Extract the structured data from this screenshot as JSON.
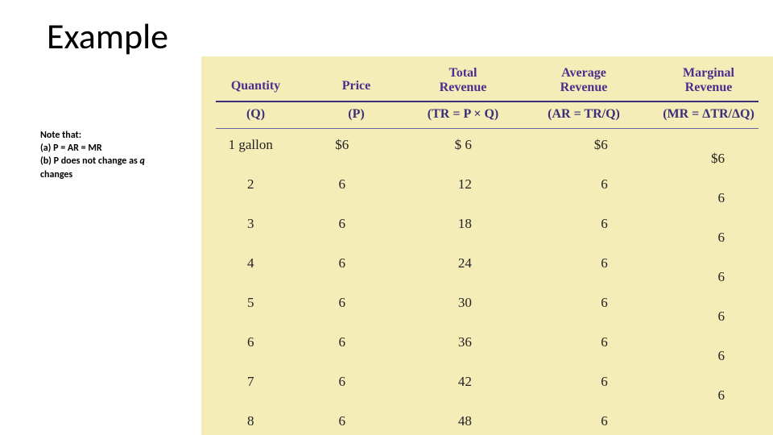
{
  "title": "Example",
  "note": {
    "line1": "Note that:",
    "line2": "(a) P = AR = MR",
    "line3a": "(b) P does not change as ",
    "line3b": "q",
    "line4": "changes"
  },
  "headers": {
    "quantity": "Quantity",
    "price": "Price",
    "total_l1": "Total",
    "total_l2": "Revenue",
    "avg_l1": "Average",
    "avg_l2": "Revenue",
    "marg_l1": "Marginal",
    "marg_l2": "Revenue"
  },
  "formulas": {
    "q": "(Q)",
    "p": "(P)",
    "tr": "(TR = P × Q)",
    "ar": "(AR = TR/Q)",
    "mr": "(MR = ΔTR/ΔQ)"
  },
  "rows": [
    {
      "q": "1 gallon",
      "p": "$6",
      "tr": "$  6",
      "ar": "$6"
    },
    {
      "q": "2",
      "p": "6",
      "tr": "12",
      "ar": "6"
    },
    {
      "q": "3",
      "p": "6",
      "tr": "18",
      "ar": "6"
    },
    {
      "q": "4",
      "p": "6",
      "tr": "24",
      "ar": "6"
    },
    {
      "q": "5",
      "p": "6",
      "tr": "30",
      "ar": "6"
    },
    {
      "q": "6",
      "p": "6",
      "tr": "36",
      "ar": "6"
    },
    {
      "q": "7",
      "p": "6",
      "tr": "42",
      "ar": "6"
    },
    {
      "q": "8",
      "p": "6",
      "tr": "48",
      "ar": "6"
    }
  ],
  "mr_values": [
    "$6",
    "6",
    "6",
    "6",
    "6",
    "6",
    "6"
  ],
  "colors": {
    "figure_bg": "#f5edb7",
    "header_text": "#4b2f8f",
    "rule": "#3b2e7a",
    "body_text": "#222222"
  },
  "fontsizes": {
    "title": 44,
    "note": 12,
    "header": 16,
    "body": 17
  }
}
